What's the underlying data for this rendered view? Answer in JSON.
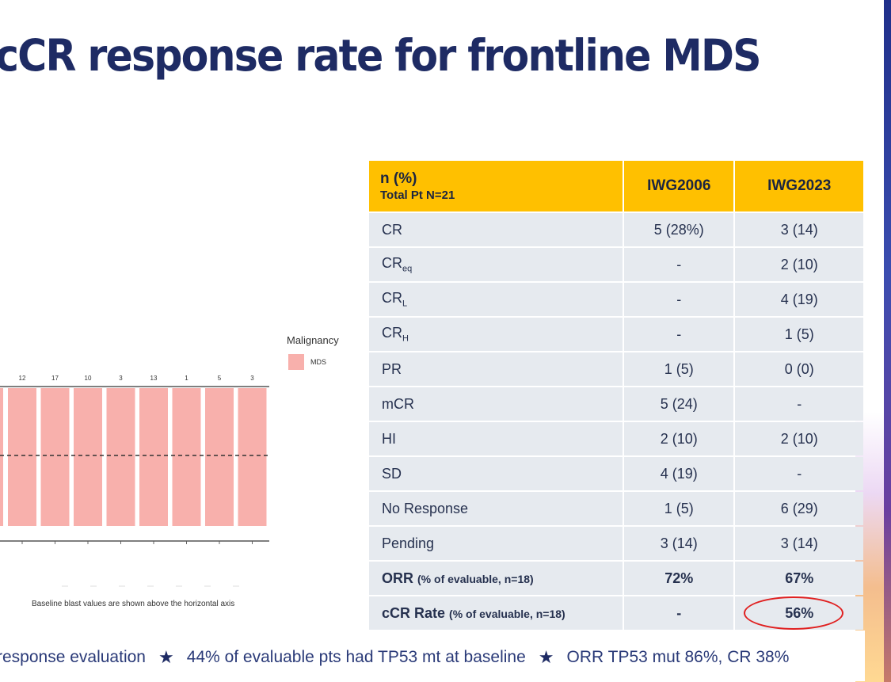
{
  "title": "cCR response rate for frontline MDS",
  "chart_data": {
    "type": "bar",
    "title": "",
    "xlabel": "",
    "ylabel": "",
    "categories": [
      "12",
      "17",
      "10",
      "3",
      "13",
      "1",
      "5",
      "3"
    ],
    "values": [
      100,
      100,
      100,
      100,
      100,
      100,
      100,
      100
    ],
    "series": [
      {
        "name": "MDS",
        "values": [
          100,
          100,
          100,
          100,
          100,
          100,
          100,
          100
        ]
      }
    ],
    "baseline_labels": [
      "12",
      "17",
      "10",
      "3",
      "13",
      "1",
      "5",
      "3"
    ],
    "reference_line": "dashed",
    "legend": {
      "title": "Malignancy",
      "items": [
        "MDS"
      ],
      "placement": "right"
    },
    "bar_color": "#f8b0ac",
    "caption": "Baseline blast values are shown above the horizontal axis"
  },
  "table": {
    "header": {
      "label_main": "n (%)",
      "label_sub": "Total Pt N=21",
      "col1": "IWG2006",
      "col2": "IWG2023"
    },
    "rows": [
      {
        "label": "CR",
        "sub": "",
        "v1": "5 (28%)",
        "v2": "3 (14)"
      },
      {
        "label": "CR",
        "sub": "eq",
        "v1": "-",
        "v2": "2 (10)"
      },
      {
        "label": "CR",
        "sub": "L",
        "v1": "-",
        "v2": "4 (19)"
      },
      {
        "label": "CR",
        "sub": "H",
        "v1": "-",
        "v2": "1 (5)"
      },
      {
        "label": "PR",
        "sub": "",
        "v1": "1 (5)",
        "v2": "0 (0)"
      },
      {
        "label": "mCR",
        "sub": "",
        "v1": "5 (24)",
        "v2": "-"
      },
      {
        "label": "HI",
        "sub": "",
        "v1": "2 (10)",
        "v2": "2 (10)"
      },
      {
        "label": "SD",
        "sub": "",
        "v1": "4 (19)",
        "v2": "-"
      },
      {
        "label": "No Response",
        "sub": "",
        "v1": "1 (5)",
        "v2": "6 (29)"
      },
      {
        "label": "Pending",
        "sub": "",
        "v1": "3 (14)",
        "v2": "3 (14)"
      }
    ],
    "orr": {
      "label": "ORR",
      "note": "(% of evaluable, n=18)",
      "v1": "72%",
      "v2": "67%"
    },
    "ccr": {
      "label": "cCR Rate",
      "note": "(% of evaluable, n=18)",
      "v1": "-",
      "v2": "56%"
    }
  },
  "footer": {
    "items": [
      "response evaluation",
      "44% of evaluable pts had TP53 mt at baseline",
      "ORR TP53 mut 86%, CR 38%"
    ],
    "star": "★"
  },
  "colors": {
    "title": "#1e2b64",
    "header": "#ffc000",
    "cell": "#e6eaef",
    "bar": "#f8b0ac",
    "highlight": "#e02020"
  }
}
